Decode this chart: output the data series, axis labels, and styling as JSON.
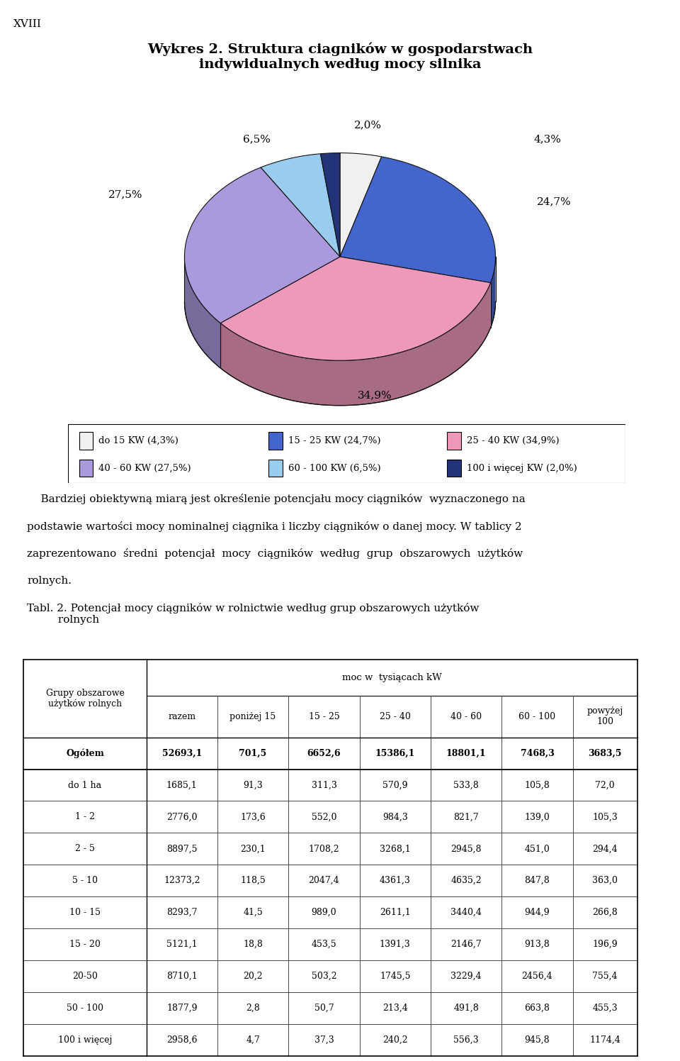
{
  "page_label": "XVIII",
  "title_line1": "Wykres 2. Struktura ciagników w gospodarstwach",
  "title_line2": "indywidualnych według mocy silnika",
  "pie_values": [
    4.3,
    24.7,
    34.9,
    27.5,
    6.5,
    2.0
  ],
  "pie_labels": [
    "4,3%",
    "24,7%",
    "34,9%",
    "27,5%",
    "6,5%",
    "2,0%"
  ],
  "pie_colors": [
    "#f0f0f0",
    "#4466cc",
    "#ee99bb",
    "#aa99dd",
    "#99ccee",
    "#223377"
  ],
  "pie_edge_color": "#111111",
  "legend_labels": [
    "do 15 KW (4,3%)",
    "15 - 25 KW (24,7%)",
    "25 - 40 KW (34,9%)",
    "40 - 60 KW (27,5%)",
    "60 - 100 KW (6,5%)",
    "100 i więcej KW (2,0%)"
  ],
  "legend_colors": [
    "#f0f0f0",
    "#4466cc",
    "#ee99bb",
    "#aa99dd",
    "#99ccee",
    "#223377"
  ],
  "table_rows": [
    [
      "Ogółem",
      "52693,1",
      "701,5",
      "6652,6",
      "15386,1",
      "18801,1",
      "7468,3",
      "3683,5"
    ],
    [
      "do 1 ha",
      "1685,1",
      "91,3",
      "311,3",
      "570,9",
      "533,8",
      "105,8",
      "72,0"
    ],
    [
      "1 - 2",
      "2776,0",
      "173,6",
      "552,0",
      "984,3",
      "821,7",
      "139,0",
      "105,3"
    ],
    [
      "2 - 5",
      "8897,5",
      "230,1",
      "1708,2",
      "3268,1",
      "2945,8",
      "451,0",
      "294,4"
    ],
    [
      "5 - 10",
      "12373,2",
      "118,5",
      "2047,4",
      "4361,3",
      "4635,2",
      "847,8",
      "363,0"
    ],
    [
      "10 - 15",
      "8293,7",
      "41,5",
      "989,0",
      "2611,1",
      "3440,4",
      "944,9",
      "266,8"
    ],
    [
      "15 - 20",
      "5121,1",
      "18,8",
      "453,5",
      "1391,3",
      "2146,7",
      "913,8",
      "196,9"
    ],
    [
      "20-50",
      "8710,1",
      "20,2",
      "503,2",
      "1745,5",
      "3229,4",
      "2456,4",
      "755,4"
    ],
    [
      "50 - 100",
      "1877,9",
      "2,8",
      "50,7",
      "213,4",
      "491,8",
      "663,8",
      "455,3"
    ],
    [
      "100 i więcej",
      "2958,6",
      "4,7",
      "37,3",
      "240,2",
      "556,3",
      "945,8",
      "1174,4"
    ]
  ]
}
